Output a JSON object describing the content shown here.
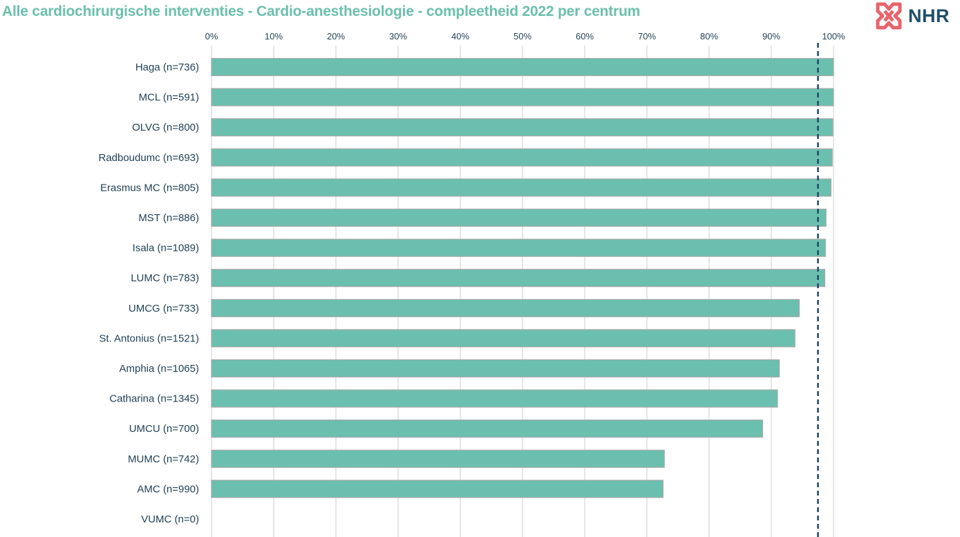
{
  "colors": {
    "title": "#6bbfae",
    "bar": "#6bbfae",
    "bar_border": "#a9a9a9",
    "target_line": "#1f4e69",
    "gridline": "#d9d9d9",
    "label": "#1f3f55"
  },
  "logo": {
    "text": "NHR",
    "icon": "cross-knot-icon"
  },
  "chart_data": {
    "type": "bar",
    "orientation": "horizontal",
    "title": "Alle cardiochirurgische interventies - Cardio-anesthesiologie  - compleetheid 2022 per centrum",
    "categories": [
      "Haga (n=736)",
      "MCL (n=591)",
      "OLVG (n=800)",
      "Radboudumc (n=693)",
      "Erasmus MC (n=805)",
      "MST (n=886)",
      "Isala (n=1089)",
      "LUMC (n=783)",
      "UMCG (n=733)",
      "St. Antonius (n=1521)",
      "Amphia (n=1065)",
      "Catharina (n=1345)",
      "UMCU (n=700)",
      "MUMC (n=742)",
      "AMC (n=990)",
      "VUMC (n=0)"
    ],
    "values": [
      100,
      100,
      99.9,
      99.8,
      99.6,
      98.8,
      98.7,
      98.6,
      94.5,
      93.8,
      91.3,
      91.0,
      88.6,
      72.8,
      72.6,
      0
    ],
    "xlim": [
      0,
      100
    ],
    "xticks": [
      "0%",
      "10%",
      "20%",
      "30%",
      "40%",
      "50%",
      "60%",
      "70%",
      "80%",
      "90%",
      "100%"
    ],
    "tick_position": "top",
    "grid": true,
    "reference_line": {
      "value": 97.5,
      "style": "dashed"
    }
  }
}
